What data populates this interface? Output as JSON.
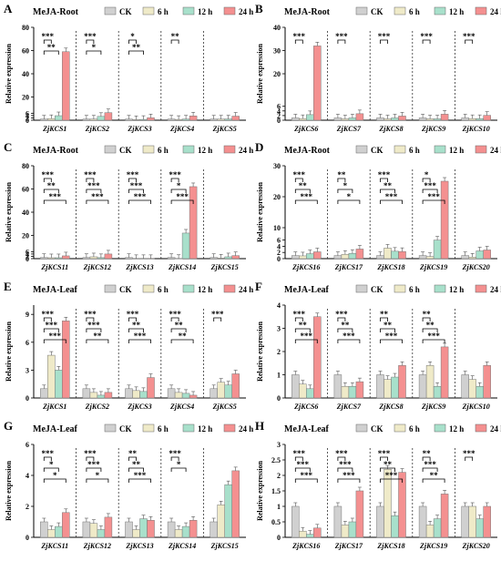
{
  "legend": {
    "items": [
      {
        "label": "CK",
        "color": "#d0d0d0"
      },
      {
        "label": "6 h",
        "color": "#efeac8"
      },
      {
        "label": "12 h",
        "color": "#a8e0cb"
      },
      {
        "label": "24 h",
        "color": "#f49090"
      }
    ]
  },
  "ylabel": "Relative expression",
  "chart_data": [
    {
      "type": "bar",
      "panel": "A",
      "treatment": "MeJA-Root",
      "ylim": [
        0,
        80
      ],
      "yticks": [
        0,
        2,
        4,
        6,
        20,
        40,
        60,
        80
      ],
      "categories": [
        "ZjKCS1",
        "ZjKCS2",
        "ZjKCS3",
        "ZjKCS4",
        "ZjKCS5"
      ],
      "series": [
        {
          "name": "CK",
          "values": [
            1,
            1,
            1,
            1,
            1
          ]
        },
        {
          "name": "6 h",
          "values": [
            1.4,
            1.0,
            0.5,
            0.7,
            1.0
          ]
        },
        {
          "name": "12 h",
          "values": [
            3.9,
            3.3,
            0.7,
            1.0,
            1.1
          ]
        },
        {
          "name": "24 h",
          "values": [
            59,
            6.5,
            2.1,
            3.7,
            3.5
          ]
        }
      ],
      "significance": [
        "***",
        "**",
        "***",
        "*",
        "*",
        "**",
        "**"
      ]
    },
    {
      "type": "bar",
      "panel": "B",
      "treatment": "MeJA-Root",
      "ylim": [
        0,
        40
      ],
      "yticks": [
        0,
        2,
        4,
        6,
        20,
        30,
        40
      ],
      "categories": [
        "ZjKCS6",
        "ZjKCS7",
        "ZjKCS8",
        "ZjKCS9",
        "ZjKCS10"
      ],
      "series": [
        {
          "name": "CK",
          "values": [
            1,
            1,
            1,
            1,
            1
          ]
        },
        {
          "name": "6 h",
          "values": [
            0.7,
            0.6,
            0.6,
            0.6,
            0.7
          ]
        },
        {
          "name": "12 h",
          "values": [
            2.4,
            1.0,
            1.0,
            0.6,
            0.7
          ]
        },
        {
          "name": "24 h",
          "values": [
            32,
            2.8,
            1.8,
            2.6,
            2.1
          ]
        }
      ],
      "significance": [
        "***",
        "***",
        "***",
        "***",
        "***"
      ]
    },
    {
      "type": "bar",
      "panel": "C",
      "treatment": "MeJA-Root",
      "ylim": [
        0,
        80
      ],
      "yticks": [
        0,
        2,
        4,
        6,
        20,
        40,
        60,
        80
      ],
      "categories": [
        "ZjKCS11",
        "ZjKCS12",
        "ZjKCS13",
        "ZjKCS14",
        "ZjKCS15"
      ],
      "series": [
        {
          "name": "CK",
          "values": [
            1,
            1,
            1,
            1,
            1
          ]
        },
        {
          "name": "6 h",
          "values": [
            0.8,
            1.6,
            0.1,
            0.2,
            0.5
          ]
        },
        {
          "name": "12 h",
          "values": [
            0.8,
            0.9,
            0.1,
            22,
            1.6
          ]
        },
        {
          "name": "24 h",
          "values": [
            2.4,
            4.0,
            0.1,
            62,
            2.6
          ]
        }
      ],
      "significance": [
        "***",
        "**",
        "***",
        "***",
        "***",
        "***",
        "***",
        "***",
        "***",
        "***",
        "*",
        "***"
      ]
    },
    {
      "type": "bar",
      "panel": "D",
      "treatment": "MeJA-Root",
      "ylim": [
        0,
        30
      ],
      "yticks": [
        0,
        2,
        4,
        6,
        10,
        20,
        30
      ],
      "categories": [
        "ZjKCS16",
        "ZjKCS17",
        "ZjKCS18",
        "ZjKCS19",
        "ZjKCS20"
      ],
      "series": [
        {
          "name": "CK",
          "values": [
            1,
            1,
            1,
            1,
            1
          ]
        },
        {
          "name": "6 h",
          "values": [
            0.9,
            1.4,
            3.4,
            0.7,
            0.5
          ]
        },
        {
          "name": "12 h",
          "values": [
            1.6,
            1.7,
            2.4,
            6,
            2.5
          ]
        },
        {
          "name": "24 h",
          "values": [
            2.2,
            3.1,
            2.3,
            25,
            2.8
          ]
        }
      ],
      "significance": [
        "***",
        "**",
        "***",
        "**",
        "*",
        "*",
        "***",
        "**",
        "***",
        "*",
        "***",
        "***"
      ]
    },
    {
      "type": "bar",
      "panel": "E",
      "treatment": "MeJA-Leaf",
      "ylim": [
        0,
        10
      ],
      "yticks": [
        0,
        3,
        6,
        9
      ],
      "categories": [
        "ZjKCS1",
        "ZjKCS2",
        "ZjKCS3",
        "ZjKCS4",
        "ZjKCS5"
      ],
      "series": [
        {
          "name": "CK",
          "values": [
            1,
            1,
            1,
            1,
            1
          ]
        },
        {
          "name": "6 h",
          "values": [
            4.6,
            0.6,
            0.8,
            0.6,
            1.7
          ]
        },
        {
          "name": "12 h",
          "values": [
            3.0,
            0.3,
            0.7,
            0.5,
            1.4
          ]
        },
        {
          "name": "24 h",
          "values": [
            8.3,
            0.6,
            2.2,
            0.3,
            2.6
          ]
        }
      ],
      "significance": [
        "***",
        "***",
        "***",
        "***",
        "***",
        "**",
        "***",
        "**",
        "***",
        "***",
        "**",
        "**",
        "***"
      ]
    },
    {
      "type": "bar",
      "panel": "F",
      "treatment": "MeJA-Leaf",
      "ylim": [
        0,
        4
      ],
      "yticks": [
        0,
        1,
        2,
        3,
        4
      ],
      "categories": [
        "ZjKCS6",
        "ZjKCS7",
        "ZjKCS8",
        "ZjKCS9",
        "ZjKCS10"
      ],
      "series": [
        {
          "name": "CK",
          "values": [
            1,
            1,
            1,
            1,
            1
          ]
        },
        {
          "name": "6 h",
          "values": [
            0.6,
            0.5,
            0.8,
            1.4,
            0.8
          ]
        },
        {
          "name": "12 h",
          "values": [
            0.4,
            0.5,
            0.9,
            0.5,
            0.5
          ]
        },
        {
          "name": "24 h",
          "values": [
            3.5,
            0.7,
            1.4,
            2.2,
            1.4
          ]
        }
      ],
      "significance": [
        "***",
        "**",
        "***",
        "***",
        "**",
        "***",
        "**",
        "**",
        "***",
        "**",
        "**",
        "***"
      ]
    },
    {
      "type": "bar",
      "panel": "G",
      "treatment": "MeJA-Leaf",
      "ylim": [
        0,
        6
      ],
      "yticks": [
        0,
        2,
        4,
        6
      ],
      "categories": [
        "ZjKCS11",
        "ZjKCS12",
        "ZjKCS13",
        "ZjKCS14",
        "ZjKCS15"
      ],
      "series": [
        {
          "name": "CK",
          "values": [
            1,
            1,
            1,
            1,
            1
          ]
        },
        {
          "name": "6 h",
          "values": [
            0.5,
            0.9,
            0.5,
            0.5,
            2.1
          ]
        },
        {
          "name": "12 h",
          "values": [
            0.7,
            0.5,
            1.2,
            0.7,
            3.4
          ]
        },
        {
          "name": "24 h",
          "values": [
            1.6,
            1.3,
            1.1,
            1.1,
            4.3
          ]
        }
      ],
      "significance": [
        "***",
        "*",
        "*",
        "***",
        "***",
        "*",
        "**",
        "**",
        "***",
        "***",
        "*"
      ]
    },
    {
      "type": "bar",
      "panel": "H",
      "treatment": "MeJA-Leaf",
      "ylim": [
        0,
        3
      ],
      "yticks": [
        0.0,
        0.5,
        1.0,
        1.5,
        2.0,
        2.5,
        3.0
      ],
      "categories": [
        "ZjKCS16",
        "ZjKCS17",
        "ZjKCS18",
        "ZjKCS19",
        "ZjKCS20"
      ],
      "series": [
        {
          "name": "CK",
          "values": [
            1,
            1,
            1,
            1,
            1
          ]
        },
        {
          "name": "6 h",
          "values": [
            0.2,
            0.4,
            2.2,
            0.4,
            1.0
          ]
        },
        {
          "name": "12 h",
          "values": [
            0.1,
            0.5,
            0.7,
            0.6,
            0.6
          ]
        },
        {
          "name": "24 h",
          "values": [
            0.3,
            1.5,
            2.1,
            1.4,
            1.0
          ]
        }
      ],
      "significance": [
        "***",
        "***",
        "***",
        "***",
        "***",
        "***",
        "***",
        "**",
        "***",
        "**",
        "***",
        "**",
        "***"
      ]
    }
  ]
}
